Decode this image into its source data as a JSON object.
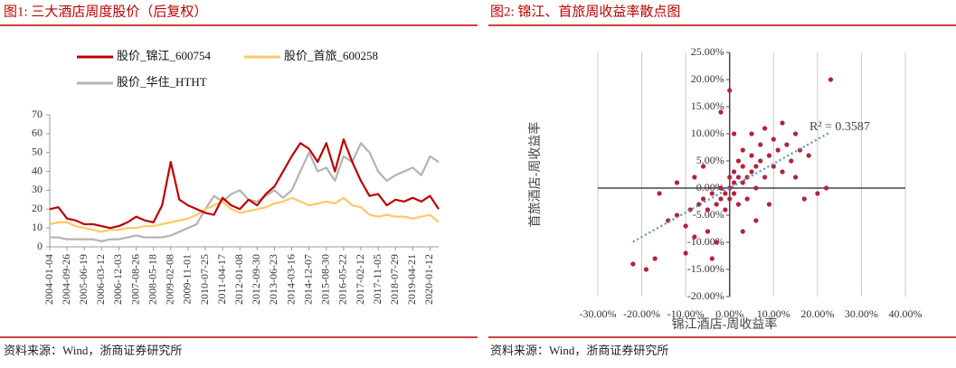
{
  "chart_data": [
    {
      "type": "line",
      "title": "图1:   三大酒店周度股价（后复权）",
      "source": "资料来源：Wind，浙商证券研究所",
      "categories": [
        "2004-01-04",
        null,
        "2004-09-26",
        null,
        "2005-06-19",
        null,
        "2006-03-12",
        null,
        "2006-12-03",
        null,
        "2007-08-26",
        null,
        "2008-05-18",
        null,
        "2009-02-08",
        null,
        "2009-11-01",
        null,
        "2010-07-25",
        null,
        "2011-04-17",
        null,
        "2012-01-08",
        null,
        "2012-09-30",
        null,
        "2013-06-23",
        null,
        "2014-03-16",
        null,
        "2014-12-07",
        null,
        "2015-08-30",
        null,
        "2016-05-22",
        null,
        "2017-02-12",
        null,
        "2017-11-05",
        null,
        "2018-07-29",
        null,
        "2019-04-21",
        null,
        "2020-01-12",
        null
      ],
      "series": [
        {
          "name": "股价_锦江_600754",
          "color": "#c00000",
          "values": [
            20,
            21,
            15,
            14,
            12,
            12,
            11,
            10,
            11,
            13,
            16,
            14,
            13,
            22,
            45,
            25,
            22,
            20,
            18,
            17,
            26,
            22,
            20,
            25,
            22,
            28,
            32,
            40,
            48,
            55,
            52,
            45,
            55,
            40,
            57,
            45,
            35,
            27,
            28,
            22,
            25,
            24,
            26,
            24,
            27,
            20
          ]
        },
        {
          "name": "股价_首旅_600258",
          "color": "#ffc966",
          "values": [
            12,
            13,
            13,
            11,
            10,
            9,
            8,
            9,
            9,
            10,
            10,
            11,
            11,
            12,
            13,
            14,
            15,
            17,
            20,
            22,
            24,
            20,
            18,
            19,
            20,
            21,
            23,
            24,
            26,
            24,
            22,
            23,
            24,
            23,
            26,
            22,
            21,
            17,
            16,
            17,
            16,
            16,
            15,
            16,
            17,
            13
          ]
        },
        {
          "name": "股价_华住_HTHT",
          "color": "#b3b3b3",
          "values": [
            5,
            5,
            4,
            4,
            4,
            4,
            3,
            4,
            4,
            5,
            6,
            5,
            5,
            5,
            6,
            8,
            10,
            12,
            20,
            27,
            24,
            28,
            30,
            25,
            24,
            27,
            30,
            26,
            30,
            40,
            50,
            40,
            42,
            35,
            48,
            45,
            55,
            50,
            40,
            35,
            38,
            40,
            42,
            38,
            48,
            45
          ]
        }
      ],
      "ylim": [
        0,
        70
      ],
      "yticks": [
        0,
        10,
        20,
        30,
        40,
        50,
        60,
        70
      ]
    },
    {
      "type": "scatter",
      "title": "图2:   锦江、首旅周收益率散点图",
      "source": "资料来源：Wind，浙商证券研究所",
      "x_label": "锦江酒店-周收益率",
      "y_label": "首旅酒店-周收益率",
      "annotation": "R² = 0.3587",
      "color": "#b5223a",
      "trendline": true,
      "trendline_color": "#5b8fc7",
      "grid": true,
      "x": [
        -22,
        -17,
        -19,
        -14,
        -12,
        -10,
        -9,
        -8,
        -7,
        -6,
        -5,
        -5,
        -4,
        -3,
        -3,
        -2,
        -2,
        -1,
        -1,
        0,
        0,
        0,
        1,
        1,
        1,
        2,
        2,
        2,
        3,
        3,
        3,
        4,
        4,
        5,
        5,
        5,
        6,
        6,
        7,
        7,
        8,
        8,
        9,
        10,
        10,
        11,
        12,
        12,
        13,
        14,
        15,
        16,
        17,
        18,
        20,
        22,
        23,
        -12,
        -16,
        -10,
        0,
        -2,
        -4,
        1,
        -6,
        3,
        6,
        9,
        -8,
        15
      ],
      "values": [
        -14,
        -13,
        -15,
        -6,
        -5,
        -7,
        -4,
        -9,
        -3,
        -2,
        -4,
        -8,
        -1,
        -3,
        -10,
        -2,
        0,
        -1,
        -4,
        0,
        2,
        -2,
        1,
        3,
        -1,
        2,
        5,
        -3,
        1,
        4,
        7,
        2,
        -2,
        3,
        6,
        10,
        4,
        0,
        5,
        8,
        2,
        11,
        6,
        4,
        9,
        7,
        3,
        12,
        8,
        5,
        10,
        7,
        -2,
        6,
        -1,
        0,
        20,
        1,
        -1,
        -12,
        18,
        14,
        -13,
        10,
        4,
        -8,
        -6,
        -3,
        2,
        2
      ],
      "xlim": [
        -30,
        40
      ],
      "ylim": [
        -20,
        25
      ],
      "xticks": [
        {
          "value": -30,
          "label": "-30.00%"
        },
        {
          "value": -20,
          "label": "-20.00%"
        },
        {
          "value": -10,
          "label": "-10.00%"
        },
        {
          "value": 0,
          "label": "0.00%"
        },
        {
          "value": 10,
          "label": "10.00%"
        },
        {
          "value": 20,
          "label": "20.00%"
        },
        {
          "value": 30,
          "label": "30.00%"
        },
        {
          "value": 40,
          "label": "40.00%"
        }
      ],
      "yticks": [
        {
          "value": -20,
          "label": "-20.00%"
        },
        {
          "value": -15,
          "label": "-15.00%"
        },
        {
          "value": -10,
          "label": "-10.00%"
        },
        {
          "value": -5,
          "label": "-5.00%"
        },
        {
          "value": 0,
          "label": "0.00%"
        },
        {
          "value": 5,
          "label": "5.00%"
        },
        {
          "value": 10,
          "label": "10.00%"
        },
        {
          "value": 15,
          "label": "15.00%"
        },
        {
          "value": 20,
          "label": "20.00%"
        },
        {
          "value": 25,
          "label": "25.00%"
        }
      ]
    }
  ]
}
